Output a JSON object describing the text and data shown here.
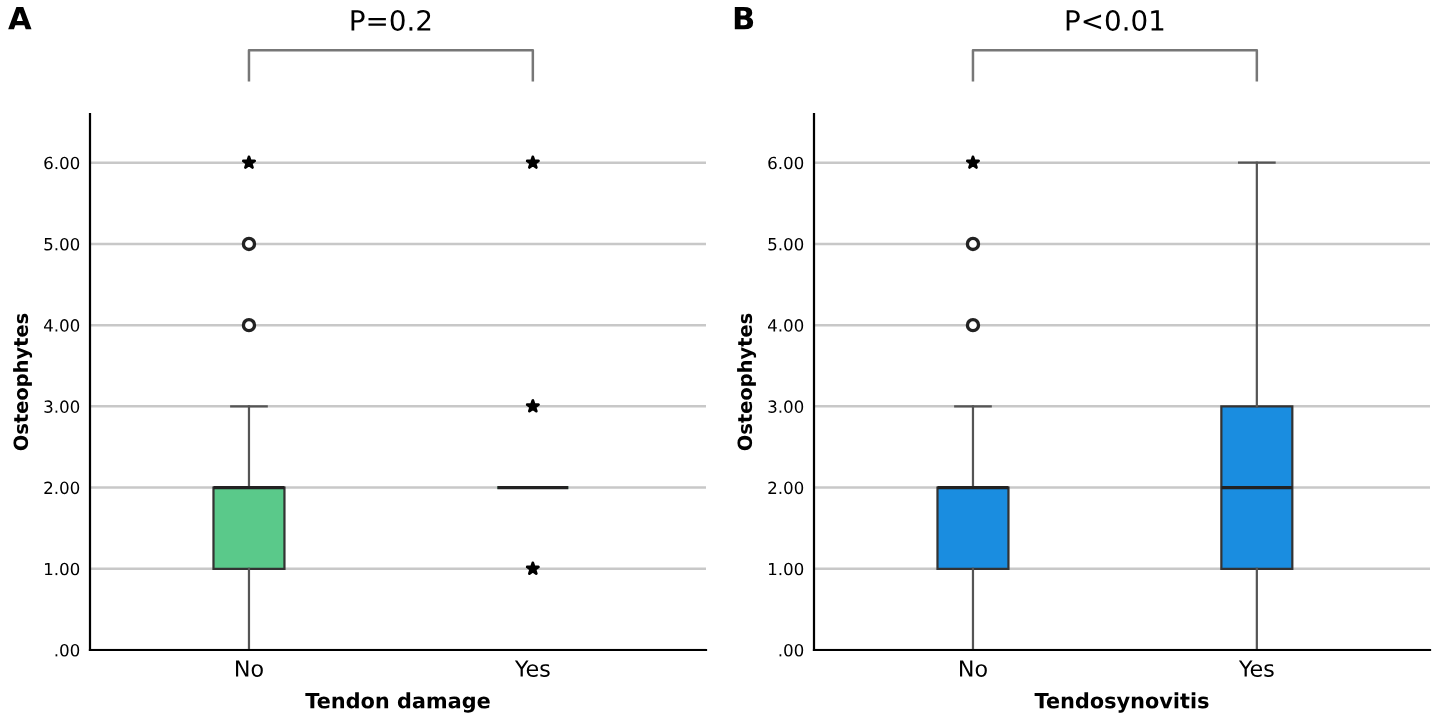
{
  "chart_data": [
    {
      "type": "box",
      "title": "A",
      "xlabel": "Tendon damage",
      "ylabel": "Osteophytes",
      "annotations": [
        "P=0.2"
      ],
      "categories": [
        "No",
        "Yes"
      ],
      "color": "#5ac98a",
      "boxes": [
        {
          "low": 0,
          "q1": 1,
          "median": 2,
          "q3": 2,
          "high": 3,
          "outliers": [
            4,
            5
          ]
        },
        {
          "low": 2,
          "q1": 2,
          "median": 2,
          "q3": 2,
          "high": 2
        }
      ],
      "series": [
        {
          "type": "scatter",
          "x": [
            "No",
            "Yes",
            "Yes",
            "Yes"
          ],
          "values": [
            6,
            6,
            3,
            1
          ],
          "marker": "star",
          "color": "#000000"
        }
      ],
      "ylim": [
        0,
        6.6
      ],
      "yticks": [
        {
          "value": 0,
          "label": ".00"
        },
        {
          "value": 1,
          "label": "1.00"
        },
        {
          "value": 2,
          "label": "2.00"
        },
        {
          "value": 3,
          "label": "3.00"
        },
        {
          "value": 4,
          "label": "4.00"
        },
        {
          "value": 5,
          "label": "5.00"
        },
        {
          "value": 6,
          "label": "6.00"
        }
      ],
      "grid": "y"
    },
    {
      "type": "box",
      "title": "B",
      "xlabel": "Tendosynovitis",
      "ylabel": "Osteophytes",
      "annotations": [
        "P<0.01"
      ],
      "categories": [
        "No",
        "Yes"
      ],
      "color": "#1a8de0",
      "boxes": [
        {
          "low": 0,
          "q1": 1,
          "median": 2,
          "q3": 2,
          "high": 3,
          "outliers": [
            4,
            5
          ]
        },
        {
          "low": 0,
          "q1": 1,
          "median": 2,
          "q3": 3,
          "high": 6
        }
      ],
      "series": [
        {
          "type": "scatter",
          "x": [
            "No"
          ],
          "values": [
            6
          ],
          "marker": "star",
          "color": "#000000"
        }
      ],
      "ylim": [
        0,
        6.6
      ],
      "yticks": [
        {
          "value": 0,
          "label": ".00"
        },
        {
          "value": 1,
          "label": "1.00"
        },
        {
          "value": 2,
          "label": "2.00"
        },
        {
          "value": 3,
          "label": "3.00"
        },
        {
          "value": 4,
          "label": "4.00"
        },
        {
          "value": 5,
          "label": "5.00"
        },
        {
          "value": 6,
          "label": "6.00"
        }
      ],
      "grid": "y"
    }
  ]
}
